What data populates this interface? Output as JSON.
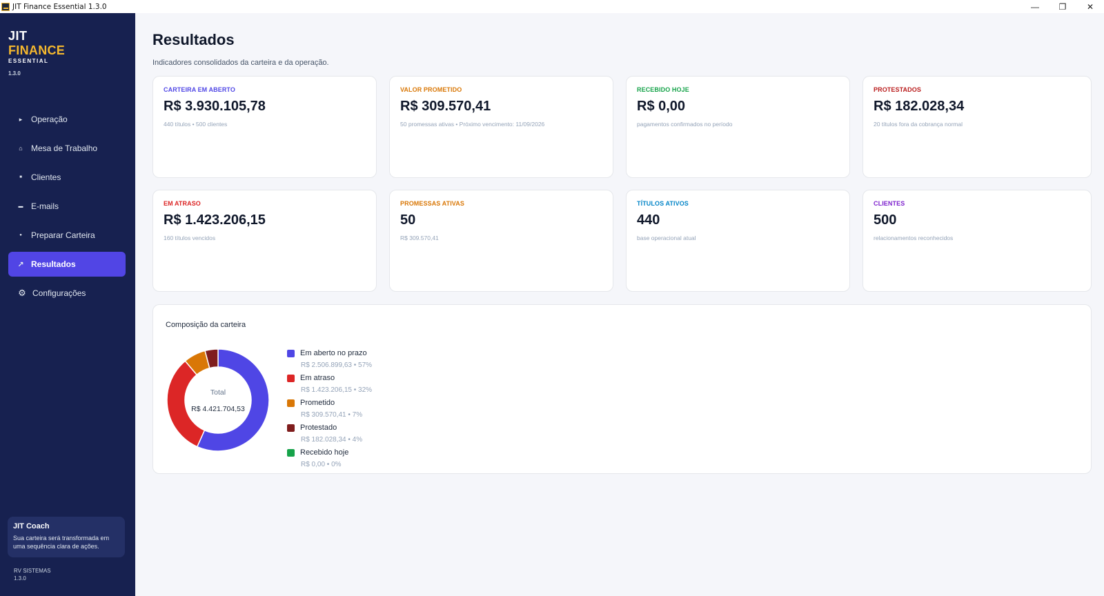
{
  "window": {
    "title": "JIT Finance Essential 1.3.0",
    "minimize_glyph": "—",
    "restore_glyph": "❐",
    "close_glyph": "✕"
  },
  "sidebar": {
    "brand": {
      "jit": "JIT",
      "finance": "FINANCE",
      "essential": "ESSENTIAL",
      "version": "1.3.0"
    },
    "items": [
      {
        "label": "Operação",
        "icon": "play-icon",
        "glyph": "▸"
      },
      {
        "label": "Mesa de Trabalho",
        "icon": "home-icon",
        "glyph": "⌂"
      },
      {
        "label": "Clientes",
        "icon": "square-icon",
        "glyph": "■"
      },
      {
        "label": "E-mails",
        "icon": "mail-icon",
        "glyph": "▬"
      },
      {
        "label": "Preparar Carteira",
        "icon": "user-icon",
        "glyph": "●"
      },
      {
        "label": "Resultados",
        "icon": "trend-icon",
        "glyph": "↗"
      },
      {
        "label": "Configurações",
        "icon": "gear-icon",
        "glyph": "⚙"
      }
    ],
    "active_index": 5,
    "coach": {
      "title": "JIT Coach",
      "text": "Sua carteira será transformada em uma sequência clara de ações."
    },
    "footer": {
      "company": "RV SISTEMAS",
      "version": "1.3.0"
    }
  },
  "main": {
    "title": "Resultados",
    "subtitle": "Indicadores consolidados da carteira e da operação.",
    "cards": [
      {
        "label": "CARTEIRA EM ABERTO",
        "value": "R$ 3.930.105,78",
        "desc": "440 títulos • 500 clientes",
        "color": "#4f46e5"
      },
      {
        "label": "VALOR PROMETIDO",
        "value": "R$ 309.570,41",
        "desc": "50 promessas ativas • Próximo vencimento: 11/09/2026",
        "color": "#d97706"
      },
      {
        "label": "RECEBIDO HOJE",
        "value": "R$ 0,00",
        "desc": "pagamentos confirmados no período",
        "color": "#16a34a"
      },
      {
        "label": "PROTESTADOS",
        "value": "R$ 182.028,34",
        "desc": "20 títulos fora da cobrança normal",
        "color": "#b91c1c"
      },
      {
        "label": "EM ATRASO",
        "value": "R$ 1.423.206,15",
        "desc": "160 títulos vencidos",
        "color": "#dc2626"
      },
      {
        "label": "PROMESSAS ATIVAS",
        "value": "50",
        "desc": "R$ 309.570,41",
        "color": "#d97706"
      },
      {
        "label": "TÍTULOS ATIVOS",
        "value": "440",
        "desc": "base operacional atual",
        "color": "#0284c7"
      },
      {
        "label": "CLIENTES",
        "value": "500",
        "desc": "relacionamentos reconhecidos",
        "color": "#7e22ce"
      }
    ],
    "composition": {
      "title": "Composição da carteira",
      "total_label": "Total",
      "total_value": "R$ 4.421.704,53"
    }
  },
  "chart_data": {
    "type": "pie",
    "title": "Composição da carteira",
    "center_label": "Total",
    "center_value": "R$ 4.421.704,53",
    "legend_position": "right",
    "slices": [
      {
        "name": "Em aberto no prazo",
        "value": 2506899.63,
        "detail": "R$ 2.506.899,63 • 57%",
        "color": "#4f46e5"
      },
      {
        "name": "Em atraso",
        "value": 1423206.15,
        "detail": "R$ 1.423.206,15 • 32%",
        "color": "#dc2626"
      },
      {
        "name": "Prometido",
        "value": 309570.41,
        "detail": "R$ 309.570,41 • 7%",
        "color": "#d97706"
      },
      {
        "name": "Protestado",
        "value": 182028.34,
        "detail": "R$ 182.028,34 • 4%",
        "color": "#7f1d1d"
      },
      {
        "name": "Recebido hoje",
        "value": 0,
        "detail": "R$ 0,00 • 0%",
        "color": "#16a34a"
      }
    ]
  }
}
